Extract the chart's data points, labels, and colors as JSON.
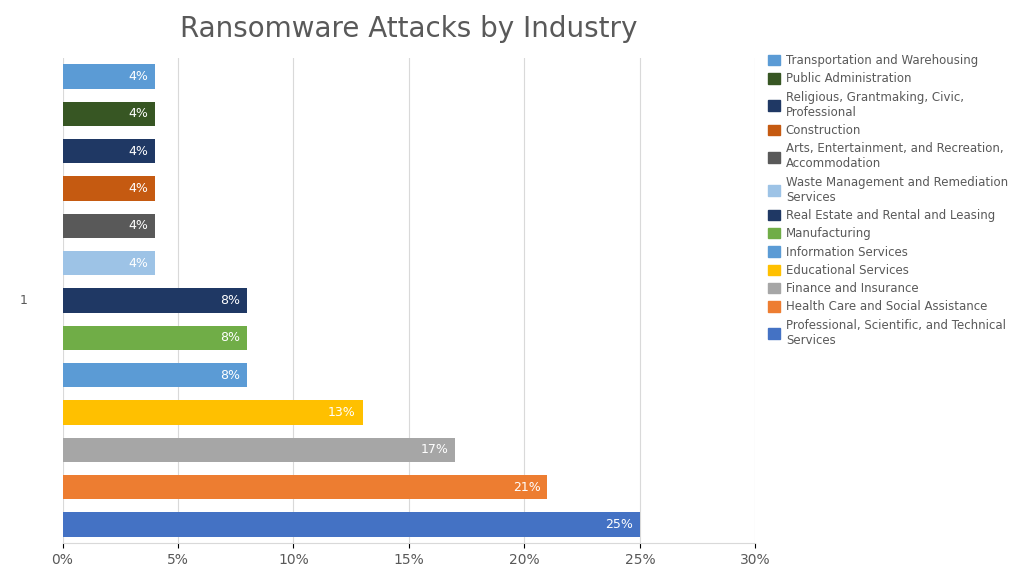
{
  "title": "Ransomware Attacks by Industry",
  "bars": [
    {
      "label": "Transportation and Warehousing",
      "value": 4,
      "color": "#5b9bd5"
    },
    {
      "label": "Public Administration",
      "value": 4,
      "color": "#375623"
    },
    {
      "label": "Religious, Grantmaking, Civic,\nProfessional",
      "value": 4,
      "color": "#1f3864"
    },
    {
      "label": "Construction",
      "value": 4,
      "color": "#c55a11"
    },
    {
      "label": "Arts, Entertainment, and Recreation,\nAccommodation",
      "value": 4,
      "color": "#595959"
    },
    {
      "label": "Waste Management and Remediation\nServices",
      "value": 4,
      "color": "#9dc3e6"
    },
    {
      "label": "Real Estate and Rental and Leasing",
      "value": 8,
      "color": "#1f3864"
    },
    {
      "label": "Manufacturing",
      "value": 8,
      "color": "#70ad47"
    },
    {
      "label": "Information Services",
      "value": 8,
      "color": "#5b9bd5"
    },
    {
      "label": "Educational Services",
      "value": 13,
      "color": "#ffc000"
    },
    {
      "label": "Finance and Insurance",
      "value": 17,
      "color": "#a6a6a6"
    },
    {
      "label": "Health Care and Social Assistance",
      "value": 21,
      "color": "#ed7d31"
    },
    {
      "label": "Professional, Scientific, and Technical\nServices",
      "value": 25,
      "color": "#4472c4"
    }
  ],
  "legend_labels": [
    "Transportation and Warehousing",
    "Public Administration",
    "Religious, Grantmaking, Civic,\nProfessional",
    "Construction",
    "Arts, Entertainment, and Recreation,\nAccommodation",
    "Waste Management and Remediation\nServices",
    "Real Estate and Rental and Leasing",
    "Manufacturing",
    "Information Services",
    "Educational Services",
    "Finance and Insurance",
    "Health Care and Social Assistance",
    "Professional, Scientific, and Technical\nServices"
  ],
  "legend_colors": [
    "#5b9bd5",
    "#375623",
    "#1f3864",
    "#c55a11",
    "#595959",
    "#9dc3e6",
    "#1f3864",
    "#70ad47",
    "#5b9bd5",
    "#ffc000",
    "#a6a6a6",
    "#ed7d31",
    "#4472c4"
  ],
  "xlim": [
    0,
    30
  ],
  "xticks": [
    0,
    5,
    10,
    15,
    20,
    25,
    30
  ],
  "xticklabels": [
    "0%",
    "5%",
    "10%",
    "15%",
    "20%",
    "25%",
    "30%"
  ],
  "title_fontsize": 20,
  "background_color": "#ffffff",
  "grid_color": "#d9d9d9"
}
